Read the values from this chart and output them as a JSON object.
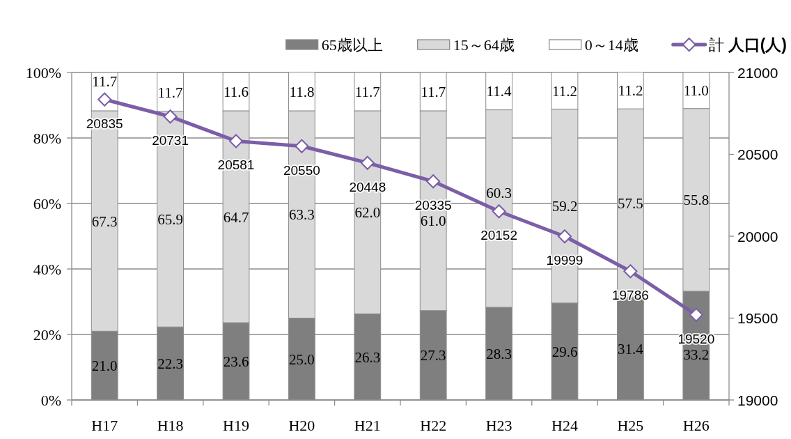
{
  "chart_data": {
    "type": "bar",
    "stacked": true,
    "categories": [
      "H17",
      "H18",
      "H19",
      "H20",
      "H21",
      "H22",
      "H23",
      "H24",
      "H25",
      "H26"
    ],
    "series": [
      {
        "name": "65歳以上",
        "color": "#7f7f7f",
        "values": [
          21.0,
          22.3,
          23.6,
          25.0,
          26.3,
          27.3,
          28.3,
          29.6,
          31.4,
          33.2
        ],
        "value_labels": [
          "21.0",
          "22.3",
          "23.6",
          "25.0",
          "26.3",
          "27.3",
          "28.3",
          "29.6",
          "31.4",
          "33.2"
        ]
      },
      {
        "name": "15～64歳",
        "color": "#d9d9d9",
        "values": [
          67.3,
          65.9,
          64.7,
          63.3,
          62.0,
          61.0,
          60.3,
          59.2,
          57.5,
          55.8
        ],
        "value_labels": [
          "67.3",
          "65.9",
          "64.7",
          "63.3",
          "62.0",
          "61.0",
          "60.3",
          "59.2",
          "57.5",
          "55.8"
        ]
      },
      {
        "name": "0～14歳",
        "color": "#ffffff",
        "values": [
          11.7,
          11.7,
          11.6,
          11.8,
          11.7,
          11.7,
          11.4,
          11.2,
          11.2,
          11.0
        ],
        "value_labels": [
          "11.7",
          "11.7",
          "11.6",
          "11.8",
          "11.7",
          "11.7",
          "11.4",
          "11.2",
          "11.2",
          "11.0"
        ]
      },
      {
        "name": "計",
        "type": "line",
        "axis": "y2",
        "marker": "diamond",
        "color": "#7b5ea7",
        "values": [
          20835,
          20731,
          20581,
          20550,
          20448,
          20335,
          20152,
          19999,
          19786,
          19520
        ],
        "value_labels": [
          "20835",
          "20731",
          "20581",
          "20550",
          "20448",
          "20335",
          "20152",
          "19999",
          "19786",
          "19520"
        ]
      }
    ],
    "ylim": [
      0,
      100
    ],
    "yticks": [
      {
        "value": 0,
        "label": "0%"
      },
      {
        "value": 20,
        "label": "20%"
      },
      {
        "value": 40,
        "label": "40%"
      },
      {
        "value": 60,
        "label": "60%"
      },
      {
        "value": 80,
        "label": "80%"
      },
      {
        "value": 100,
        "label": "100%"
      }
    ],
    "y2lim": [
      19000,
      21000
    ],
    "y2ticks": [
      19000,
      19500,
      20000,
      20500,
      21000
    ],
    "y2label": "人口(人)",
    "legend": "top",
    "grid": "y"
  }
}
